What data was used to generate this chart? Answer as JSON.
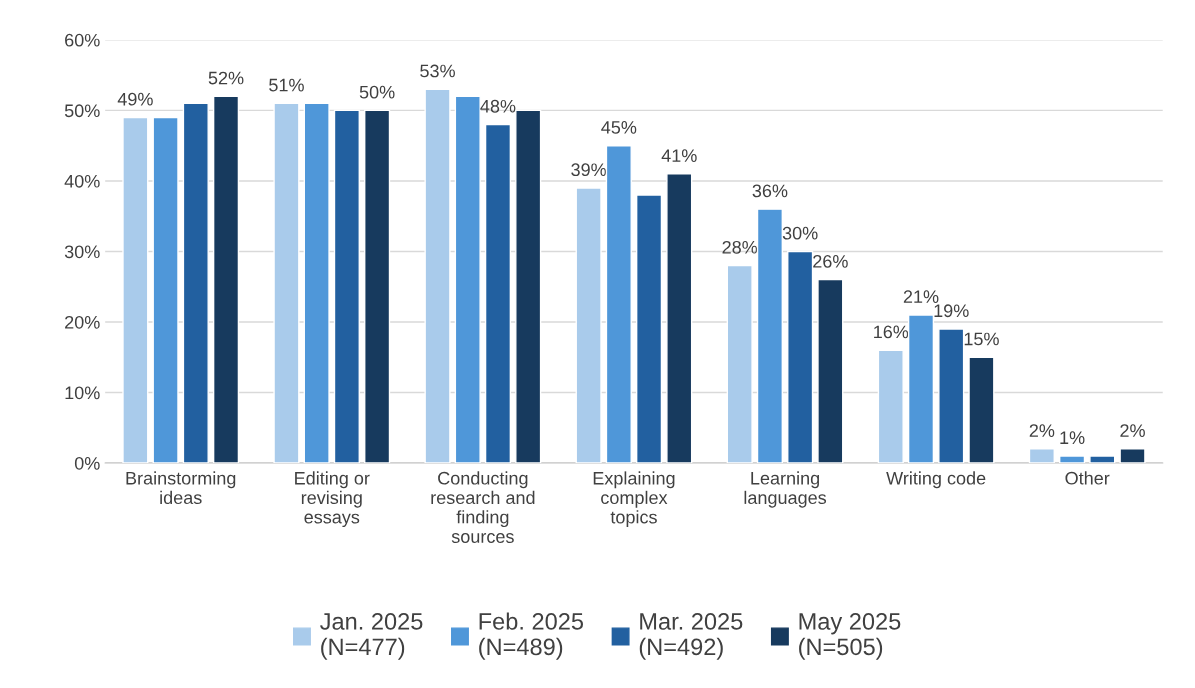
{
  "chart_data": {
    "type": "bar",
    "categories": [
      "Brainstorming\nideas",
      "Editing or\nrevising\nessays",
      "Conducting\nresearch and\nfinding\nsources",
      "Explaining\ncomplex\ntopics",
      "Learning\nlanguages",
      "Writing code",
      "Other"
    ],
    "series": [
      {
        "name": "Jan. 2025\n(N=477)",
        "color": "#a9cbeb",
        "values": [
          49,
          51,
          53,
          39,
          28,
          16,
          2
        ],
        "value_labels": [
          "49%",
          "51%",
          "53%",
          "39%",
          "28%",
          "16%",
          "2%"
        ]
      },
      {
        "name": "Feb. 2025\n(N=489)",
        "color": "#4f97d9",
        "values": [
          49,
          51,
          52,
          45,
          36,
          21,
          1
        ],
        "value_labels": [
          null,
          null,
          null,
          "45%",
          "36%",
          "21%",
          "1%"
        ]
      },
      {
        "name": "Mar. 2025\n(N=492)",
        "color": "#2260a0",
        "values": [
          51,
          50,
          48,
          38,
          30,
          19,
          1
        ],
        "value_labels": [
          null,
          null,
          "48%",
          null,
          "30%",
          "19%",
          null
        ]
      },
      {
        "name": "May 2025\n(N=505)",
        "color": "#173a5e",
        "values": [
          52,
          50,
          50,
          41,
          26,
          15,
          2
        ],
        "value_labels": [
          "52%",
          "50%",
          null,
          "41%",
          "26%",
          "15%",
          "2%"
        ]
      }
    ],
    "ylim": [
      0,
      60
    ],
    "yticks": [
      {
        "value": 0,
        "label": "0%"
      },
      {
        "value": 10,
        "label": "10%"
      },
      {
        "value": 20,
        "label": "20%"
      },
      {
        "value": 30,
        "label": "30%"
      },
      {
        "value": 40,
        "label": "40%"
      },
      {
        "value": 50,
        "label": "50%"
      },
      {
        "value": 60,
        "label": "60%"
      }
    ],
    "grid": "y",
    "legend": "bottom"
  }
}
